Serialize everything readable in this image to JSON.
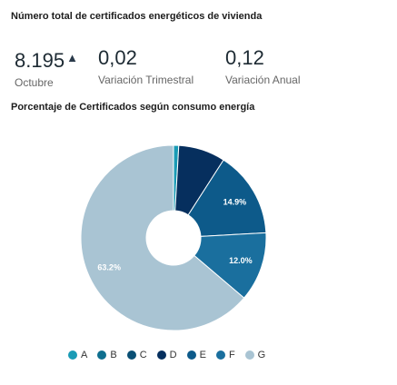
{
  "header": {
    "title": "Número total de certificados energéticos de vivienda"
  },
  "kpis": [
    {
      "value": "8.195",
      "arrow": "▲",
      "label": "Octubre"
    },
    {
      "value": "0,02",
      "label": "Variación Trimestral"
    },
    {
      "value": "0,12",
      "label": "Variación Anual"
    }
  ],
  "chart_data": {
    "type": "pie",
    "title": "Porcentaje de Certificados según consumo energía",
    "donut": true,
    "categories": [
      "A",
      "B",
      "C",
      "D",
      "E",
      "F",
      "G"
    ],
    "values": [
      0.9,
      0.0,
      0.0,
      8.1,
      14.9,
      12.0,
      63.2
    ],
    "data_labels": [
      "",
      "",
      "",
      "",
      "14.9%",
      "12.0%",
      "63.2%"
    ],
    "colors": [
      "#1a9bb5",
      "#0f6f8f",
      "#0a4f74",
      "#062f5e",
      "#0d5a8a",
      "#1a6f9e",
      "#a9c4d3"
    ],
    "legend_position": "bottom"
  }
}
